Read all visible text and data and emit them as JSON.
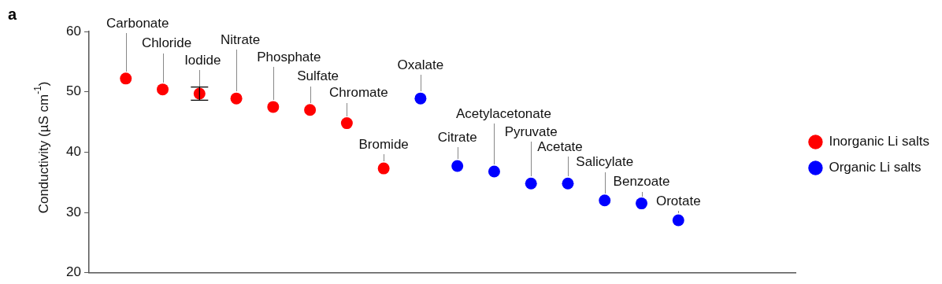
{
  "chart_data": {
    "type": "scatter",
    "annotations": [
      "a"
    ],
    "ylabel": "Conductivity (µS cm$^{-1}$)",
    "categories": [
      "Carbonate",
      "Chloride",
      "Iodide",
      "Nitrate",
      "Phosphate",
      "Sulfate",
      "Chromate",
      "Bromide",
      "Oxalate",
      "Citrate",
      "Acetylacetonate",
      "Pyruvate",
      "Acetate",
      "Salicylate",
      "Benzoate",
      "Orotate"
    ],
    "series": [
      {
        "name": "Inorganic Li salts",
        "color": "#ff0000",
        "values": [
          52.2,
          50.4,
          49.7,
          48.9,
          47.5,
          47.0,
          44.8,
          37.3,
          null,
          null,
          null,
          null,
          null,
          null,
          null,
          null
        ],
        "errors": [
          null,
          null,
          1.1,
          null,
          null,
          null,
          null,
          null,
          null,
          null,
          null,
          null,
          null,
          null,
          null,
          null
        ]
      },
      {
        "name": "Organic Li salts",
        "color": "#0000ff",
        "values": [
          null,
          null,
          null,
          null,
          null,
          null,
          null,
          null,
          48.9,
          37.7,
          36.8,
          34.8,
          34.8,
          32.0,
          31.5,
          28.7
        ]
      }
    ],
    "ylim": [
      20,
      60
    ],
    "yticks": [
      20,
      30,
      40,
      50,
      60
    ],
    "grid": false,
    "legend": "right",
    "marker": "circle",
    "tick_labels": "y"
  }
}
